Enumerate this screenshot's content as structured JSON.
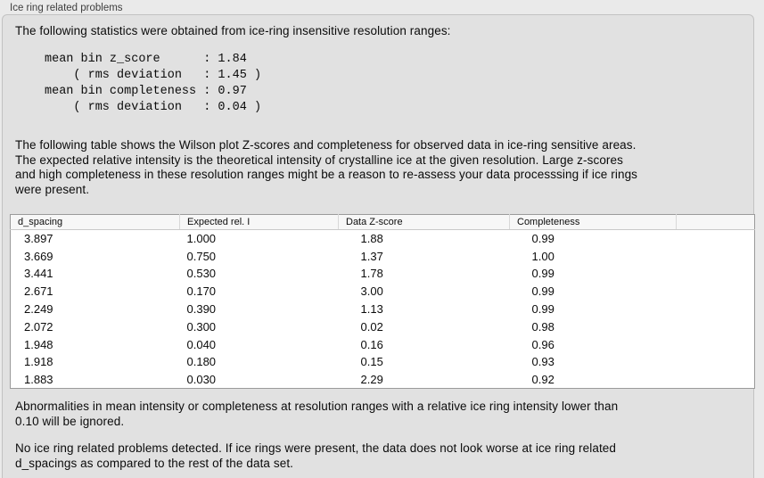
{
  "panel": {
    "title": "Ice ring related problems",
    "intro": "The following statistics were obtained from ice-ring insensitive resolution ranges:",
    "stats_block": "mean bin z_score      : 1.84\n    ( rms deviation   : 1.45 )\nmean bin completeness : 0.97\n    ( rms deviation   : 0.04 )",
    "table_note": "The following table shows the Wilson plot Z-scores and completeness for observed data in ice-ring sensitive areas.\nThe expected relative intensity is the theoretical intensity of crystalline ice at the given resolution. Large z-scores\nand high completeness in these resolution ranges might be a reason to re-assess your data processsing if ice rings\nwere present.",
    "ignore_note": "Abnormalities in mean intensity or completeness at resolution ranges with a relative ice ring intensity lower than\n0.10 will be ignored.",
    "conclusion": "No ice ring related problems detected. If ice rings were present, the data does not look worse at ice ring related\nd_spacings as compared to the rest of the data set."
  },
  "table": {
    "columns": [
      "d_spacing",
      "Expected rel. I",
      "Data Z-score",
      "Completeness"
    ],
    "rows": [
      [
        "3.897",
        "1.000",
        "1.88",
        "0.99"
      ],
      [
        "3.669",
        "0.750",
        "1.37",
        "1.00"
      ],
      [
        "3.441",
        "0.530",
        "1.78",
        "0.99"
      ],
      [
        "2.671",
        "0.170",
        "3.00",
        "0.99"
      ],
      [
        "2.249",
        "0.390",
        "1.13",
        "0.99"
      ],
      [
        "2.072",
        "0.300",
        "0.02",
        "0.98"
      ],
      [
        "1.948",
        "0.040",
        "0.16",
        "0.96"
      ],
      [
        "1.918",
        "0.180",
        "0.15",
        "0.93"
      ],
      [
        "1.883",
        "0.030",
        "2.29",
        "0.92"
      ]
    ]
  },
  "colors": {
    "outer-bg": "#eaeaea",
    "panel-bg": "#e1e1e1",
    "panel-border": "#c2c2c2",
    "title-color": "#3e3e3e",
    "text-color": "#0b0b0b",
    "table-border": "#9a9a9a",
    "table-bg": "#ffffff",
    "header-bg": "#f7f7f7",
    "header-border": "#c9c9c9",
    "header-sep": "#d8d8d8"
  }
}
